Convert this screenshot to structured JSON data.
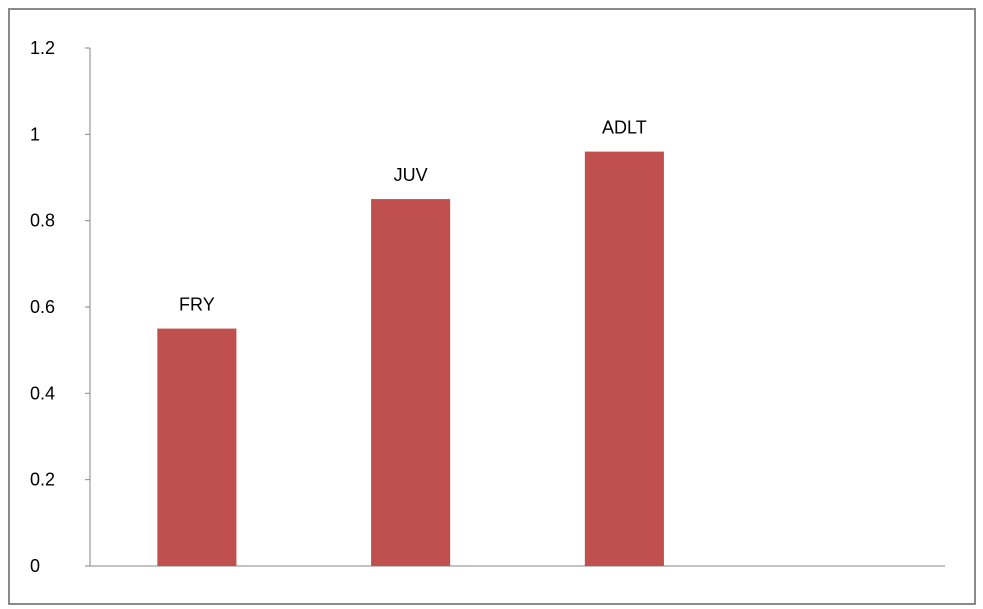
{
  "chart_data": {
    "type": "bar",
    "categories": [
      "FRY",
      "JUV",
      "ADLT"
    ],
    "values": [
      0.55,
      0.85,
      0.96
    ],
    "data_labels": [
      "FRY",
      "JUV",
      "ADLT"
    ],
    "title": "",
    "xlabel": "",
    "ylabel": "",
    "ylim": [
      0,
      1.2
    ],
    "yticks": [
      0,
      0.2,
      0.4,
      0.6,
      0.8,
      1,
      1.2
    ],
    "ytick_labels": [
      "0",
      "0.2",
      "0.4",
      "0.6",
      "0.8",
      "1",
      "1.2"
    ],
    "grid": false,
    "legend": "none",
    "bar_color": "#C0504D",
    "axis_color": "#868686"
  }
}
